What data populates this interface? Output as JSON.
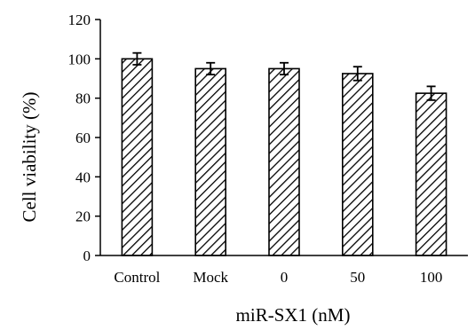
{
  "chart_data": {
    "type": "bar",
    "categories": [
      "Control",
      "Mock",
      "0",
      "50",
      "100"
    ],
    "values": [
      100,
      95,
      95,
      92.5,
      82.5
    ],
    "errors": [
      3,
      3,
      3,
      3.5,
      3.5
    ],
    "xlabel": "miR-SX1 (nM)",
    "ylabel": "Cell viability (%)",
    "ylim": [
      0,
      120
    ],
    "yticks": [
      0,
      20,
      40,
      60,
      80,
      100,
      120
    ],
    "bar_pattern": "diagonal-hatch",
    "bar_color": "#000000",
    "background": "#ffffff",
    "grid": false,
    "legend": "none"
  }
}
